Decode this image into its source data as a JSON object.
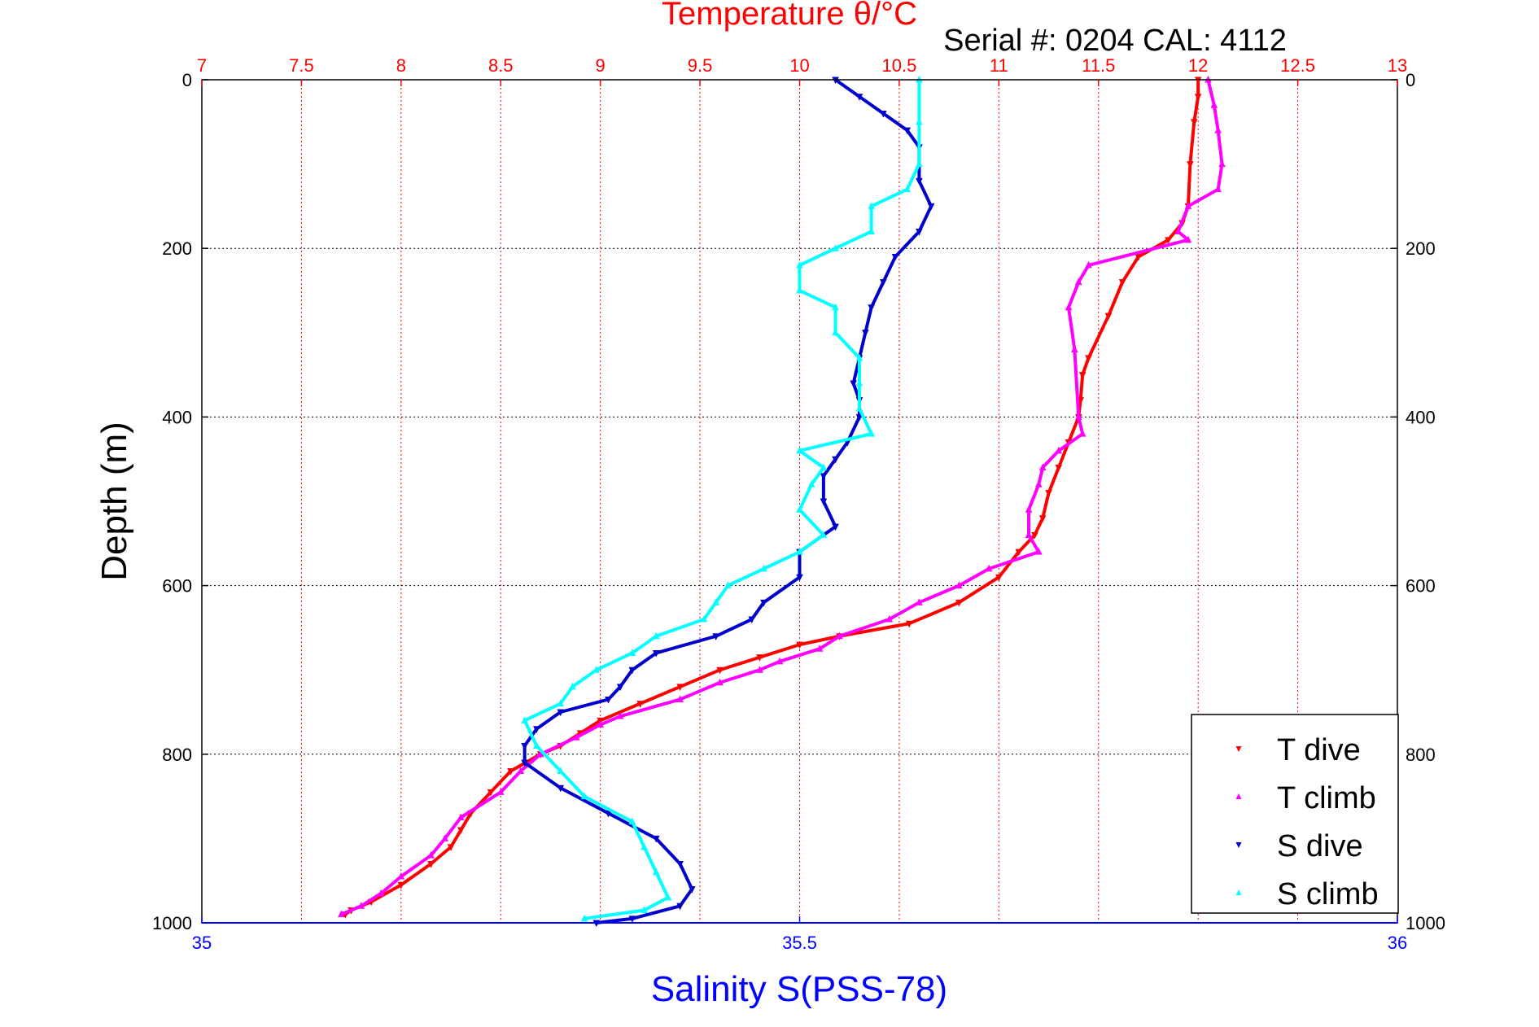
{
  "chart_data": {
    "type": "scatter",
    "title": "Temperature θ/°C",
    "annotation": "Serial #: 0204  CAL: 4112",
    "ylabel": "Depth (m)",
    "xlabel_bottom": "Salinity S(PSS-78)",
    "ylim": [
      1000,
      0
    ],
    "temperature_axis": {
      "range": [
        7,
        13
      ],
      "ticks": [
        "7",
        "7.5",
        "8",
        "8.5",
        "9",
        "9.5",
        "10",
        "10.5",
        "11",
        "11.5",
        "12",
        "12.5",
        "13"
      ]
    },
    "salinity_axis": {
      "range": [
        35,
        36
      ],
      "ticks": [
        "35",
        "35.5",
        "36"
      ]
    },
    "depth_ticks": [
      "0",
      "200",
      "400",
      "600",
      "800",
      "1000"
    ],
    "grid": true,
    "legend_position": "bottom-right",
    "colors": {
      "temperature_axis": "#ff0000",
      "salinity_axis": "#0000ff"
    },
    "series": [
      {
        "name": "T dive",
        "axis": "temperature",
        "color": "#ff0000",
        "marker": "triangle-down",
        "points": [
          [
            12.0,
            0
          ],
          [
            12.0,
            20
          ],
          [
            11.98,
            50
          ],
          [
            11.96,
            100
          ],
          [
            11.95,
            150
          ],
          [
            11.92,
            170
          ],
          [
            11.85,
            190
          ],
          [
            11.7,
            210
          ],
          [
            11.62,
            240
          ],
          [
            11.55,
            280
          ],
          [
            11.45,
            330
          ],
          [
            11.42,
            350
          ],
          [
            11.41,
            380
          ],
          [
            11.4,
            400
          ],
          [
            11.35,
            430
          ],
          [
            11.3,
            460
          ],
          [
            11.25,
            490
          ],
          [
            11.22,
            520
          ],
          [
            11.18,
            540
          ],
          [
            11.1,
            560
          ],
          [
            11.0,
            590
          ],
          [
            10.8,
            620
          ],
          [
            10.55,
            645
          ],
          [
            10.2,
            660
          ],
          [
            10.0,
            670
          ],
          [
            9.8,
            685
          ],
          [
            9.6,
            700
          ],
          [
            9.4,
            720
          ],
          [
            9.2,
            740
          ],
          [
            9.0,
            760
          ],
          [
            8.9,
            775
          ],
          [
            8.8,
            790
          ],
          [
            8.7,
            800
          ],
          [
            8.55,
            820
          ],
          [
            8.45,
            845
          ],
          [
            8.35,
            870
          ],
          [
            8.3,
            890
          ],
          [
            8.25,
            910
          ],
          [
            8.15,
            930
          ],
          [
            8.0,
            955
          ],
          [
            7.85,
            975
          ],
          [
            7.75,
            985
          ],
          [
            7.72,
            990
          ]
        ]
      },
      {
        "name": "T climb",
        "axis": "temperature",
        "color": "#ff00ff",
        "marker": "triangle-up",
        "points": [
          [
            12.05,
            0
          ],
          [
            12.08,
            30
          ],
          [
            12.1,
            60
          ],
          [
            12.12,
            100
          ],
          [
            12.1,
            130
          ],
          [
            11.95,
            150
          ],
          [
            11.9,
            180
          ],
          [
            11.95,
            190
          ],
          [
            11.45,
            220
          ],
          [
            11.4,
            240
          ],
          [
            11.35,
            270
          ],
          [
            11.38,
            320
          ],
          [
            11.4,
            400
          ],
          [
            11.42,
            420
          ],
          [
            11.3,
            440
          ],
          [
            11.22,
            460
          ],
          [
            11.2,
            480
          ],
          [
            11.15,
            510
          ],
          [
            11.15,
            540
          ],
          [
            11.2,
            560
          ],
          [
            10.95,
            580
          ],
          [
            10.8,
            600
          ],
          [
            10.6,
            620
          ],
          [
            10.45,
            640
          ],
          [
            10.2,
            660
          ],
          [
            10.1,
            675
          ],
          [
            9.9,
            690
          ],
          [
            9.8,
            700
          ],
          [
            9.6,
            715
          ],
          [
            9.4,
            735
          ],
          [
            9.1,
            755
          ],
          [
            9.0,
            765
          ],
          [
            8.88,
            780
          ],
          [
            8.7,
            800
          ],
          [
            8.6,
            820
          ],
          [
            8.5,
            845
          ],
          [
            8.3,
            875
          ],
          [
            8.22,
            900
          ],
          [
            8.15,
            920
          ],
          [
            8.0,
            945
          ],
          [
            7.9,
            965
          ],
          [
            7.8,
            980
          ],
          [
            7.7,
            990
          ]
        ]
      },
      {
        "name": "S dive",
        "axis": "salinity",
        "color": "#0000cc",
        "marker": "triangle-down",
        "points": [
          [
            35.53,
            0
          ],
          [
            35.55,
            20
          ],
          [
            35.57,
            40
          ],
          [
            35.59,
            60
          ],
          [
            35.6,
            80
          ],
          [
            35.6,
            120
          ],
          [
            35.61,
            150
          ],
          [
            35.6,
            180
          ],
          [
            35.58,
            210
          ],
          [
            35.57,
            240
          ],
          [
            35.56,
            270
          ],
          [
            35.555,
            300
          ],
          [
            35.55,
            330
          ],
          [
            35.545,
            360
          ],
          [
            35.55,
            380
          ],
          [
            35.55,
            400
          ],
          [
            35.54,
            430
          ],
          [
            35.53,
            450
          ],
          [
            35.52,
            470
          ],
          [
            35.52,
            500
          ],
          [
            35.53,
            530
          ],
          [
            35.5,
            560
          ],
          [
            35.5,
            590
          ],
          [
            35.47,
            620
          ],
          [
            35.46,
            640
          ],
          [
            35.43,
            660
          ],
          [
            35.38,
            680
          ],
          [
            35.36,
            700
          ],
          [
            35.35,
            720
          ],
          [
            35.34,
            735
          ],
          [
            35.3,
            750
          ],
          [
            35.28,
            770
          ],
          [
            35.27,
            790
          ],
          [
            35.27,
            810
          ],
          [
            35.3,
            840
          ],
          [
            35.34,
            870
          ],
          [
            35.38,
            900
          ],
          [
            35.4,
            930
          ],
          [
            35.41,
            960
          ],
          [
            35.4,
            980
          ],
          [
            35.36,
            995
          ],
          [
            35.33,
            1000
          ]
        ]
      },
      {
        "name": "S climb",
        "axis": "salinity",
        "color": "#00ffff",
        "marker": "triangle-up",
        "points": [
          [
            35.6,
            0
          ],
          [
            35.6,
            50
          ],
          [
            35.6,
            100
          ],
          [
            35.59,
            130
          ],
          [
            35.56,
            150
          ],
          [
            35.56,
            180
          ],
          [
            35.53,
            200
          ],
          [
            35.5,
            220
          ],
          [
            35.5,
            250
          ],
          [
            35.53,
            270
          ],
          [
            35.53,
            300
          ],
          [
            35.55,
            330
          ],
          [
            35.55,
            360
          ],
          [
            35.55,
            390
          ],
          [
            35.56,
            420
          ],
          [
            35.5,
            440
          ],
          [
            35.52,
            460
          ],
          [
            35.51,
            480
          ],
          [
            35.5,
            510
          ],
          [
            35.52,
            540
          ],
          [
            35.5,
            560
          ],
          [
            35.47,
            580
          ],
          [
            35.44,
            600
          ],
          [
            35.43,
            620
          ],
          [
            35.42,
            640
          ],
          [
            35.38,
            660
          ],
          [
            35.36,
            680
          ],
          [
            35.33,
            700
          ],
          [
            35.31,
            720
          ],
          [
            35.3,
            740
          ],
          [
            35.27,
            760
          ],
          [
            35.28,
            790
          ],
          [
            35.3,
            820
          ],
          [
            35.32,
            850
          ],
          [
            35.36,
            880
          ],
          [
            35.37,
            910
          ],
          [
            35.38,
            940
          ],
          [
            35.39,
            970
          ],
          [
            35.37,
            985
          ],
          [
            35.32,
            995
          ]
        ]
      }
    ]
  }
}
